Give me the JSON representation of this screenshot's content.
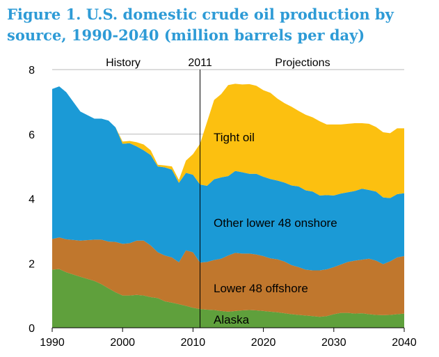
{
  "chart_data": {
    "type": "area",
    "title": "Figure 1. U.S. domestic crude oil production by source, 1990-2040 (million barrels per day)",
    "xlabel": "",
    "ylabel": "",
    "xlim": [
      1990,
      2040
    ],
    "ylim": [
      0,
      8
    ],
    "x_ticks": [
      "1990",
      "2000",
      "2010",
      "2020",
      "2030",
      "2040"
    ],
    "y_ticks": [
      "0",
      "2",
      "4",
      "6",
      "8"
    ],
    "grid_y": [
      6,
      8
    ],
    "stacked": true,
    "x": [
      1990,
      1991,
      1992,
      1994,
      1996,
      1997,
      1998,
      1999,
      2000,
      2001,
      2002,
      2003,
      2004,
      2005,
      2006,
      2007,
      2008,
      2009,
      2010,
      2011,
      2012,
      2013,
      2014,
      2015,
      2016,
      2017,
      2018,
      2019,
      2020,
      2021,
      2022,
      2023,
      2024,
      2025,
      2026,
      2027,
      2028,
      2029,
      2030,
      2031,
      2032,
      2033,
      2034,
      2035,
      2036,
      2037,
      2038,
      2039,
      2040
    ],
    "series": [
      {
        "name": "Alaska",
        "color": "#5fa03c",
        "values": [
          1.8,
          1.82,
          1.72,
          1.58,
          1.45,
          1.35,
          1.22,
          1.1,
          1.0,
          1.0,
          1.02,
          1.0,
          0.95,
          0.92,
          0.82,
          0.78,
          0.73,
          0.68,
          0.62,
          0.58,
          0.56,
          0.55,
          0.52,
          0.5,
          0.52,
          0.54,
          0.55,
          0.54,
          0.52,
          0.5,
          0.48,
          0.45,
          0.42,
          0.4,
          0.38,
          0.36,
          0.34,
          0.36,
          0.42,
          0.46,
          0.46,
          0.44,
          0.45,
          0.42,
          0.4,
          0.39,
          0.4,
          0.42,
          0.44
        ]
      },
      {
        "name": "Lower 48 offshore",
        "color": "#c0772d",
        "values": [
          0.95,
          0.98,
          1.02,
          1.12,
          1.28,
          1.38,
          1.45,
          1.56,
          1.6,
          1.62,
          1.68,
          1.7,
          1.6,
          1.42,
          1.42,
          1.4,
          1.3,
          1.72,
          1.72,
          1.44,
          1.48,
          1.55,
          1.62,
          1.74,
          1.8,
          1.76,
          1.75,
          1.73,
          1.7,
          1.65,
          1.64,
          1.6,
          1.52,
          1.48,
          1.42,
          1.42,
          1.44,
          1.45,
          1.46,
          1.5,
          1.58,
          1.64,
          1.66,
          1.72,
          1.68,
          1.58,
          1.66,
          1.76,
          1.78
        ]
      },
      {
        "name": "Other lower 48 onshore",
        "color": "#1b9ad6",
        "values": [
          4.65,
          4.68,
          4.56,
          4.0,
          3.75,
          3.75,
          3.75,
          3.55,
          3.1,
          3.1,
          2.92,
          2.8,
          2.8,
          2.66,
          2.73,
          2.72,
          2.46,
          2.4,
          2.4,
          2.42,
          2.36,
          2.5,
          2.52,
          2.46,
          2.54,
          2.52,
          2.47,
          2.5,
          2.46,
          2.46,
          2.44,
          2.45,
          2.47,
          2.5,
          2.46,
          2.44,
          2.32,
          2.3,
          2.22,
          2.2,
          2.16,
          2.16,
          2.2,
          2.13,
          2.14,
          2.07,
          1.96,
          1.96,
          1.95
        ]
      },
      {
        "name": "Tight oil",
        "color": "#fcc010",
        "values": [
          0,
          0,
          0,
          0,
          0,
          0,
          0,
          0,
          0.07,
          0.07,
          0.13,
          0.18,
          0.15,
          0.05,
          0.06,
          0.1,
          0.09,
          0.38,
          0.64,
          1.26,
          1.98,
          2.46,
          2.58,
          2.82,
          2.7,
          2.72,
          2.78,
          2.73,
          2.68,
          2.67,
          2.54,
          2.46,
          2.44,
          2.34,
          2.34,
          2.3,
          2.3,
          2.19,
          2.2,
          2.14,
          2.12,
          2.1,
          2.03,
          2.05,
          2.0,
          2.02,
          2.01,
          2.04,
          2.01
        ]
      }
    ],
    "annotations": {
      "history": "History",
      "divider": "2011",
      "projections": "Projections",
      "divider_x": 2011
    }
  }
}
